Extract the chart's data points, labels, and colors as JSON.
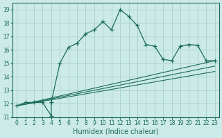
{
  "xlabel": "Humidex (Indice chaleur)",
  "bg_color": "#cceae7",
  "grid_color": "#aad4d0",
  "line_color": "#1a6b5a",
  "xlim": [
    -0.5,
    23.5
  ],
  "ylim": [
    11,
    19.5
  ],
  "xticks": [
    0,
    1,
    2,
    3,
    4,
    5,
    6,
    7,
    8,
    9,
    10,
    11,
    12,
    13,
    14,
    15,
    16,
    17,
    18,
    19,
    20,
    21,
    22,
    23
  ],
  "yticks": [
    11,
    12,
    13,
    14,
    15,
    16,
    17,
    18,
    19
  ],
  "main_x": [
    0,
    1,
    2,
    3,
    4,
    4,
    5,
    6,
    7,
    8,
    9,
    10,
    11,
    12,
    13,
    14,
    15,
    16,
    17,
    18,
    19,
    20,
    21,
    22,
    23
  ],
  "main_y": [
    11.85,
    12.1,
    12.1,
    12.1,
    11.1,
    12.1,
    15.0,
    16.2,
    16.5,
    17.2,
    17.5,
    18.1,
    17.5,
    19.0,
    18.5,
    17.8,
    16.4,
    16.3,
    15.3,
    15.2,
    16.3,
    16.4,
    16.35,
    15.2,
    15.2
  ],
  "line1_x": [
    0,
    23
  ],
  "line1_y": [
    11.85,
    15.2
  ],
  "line2_x": [
    0,
    23
  ],
  "line2_y": [
    11.85,
    14.8
  ],
  "line3_x": [
    0,
    23
  ],
  "line3_y": [
    11.85,
    14.4
  ]
}
